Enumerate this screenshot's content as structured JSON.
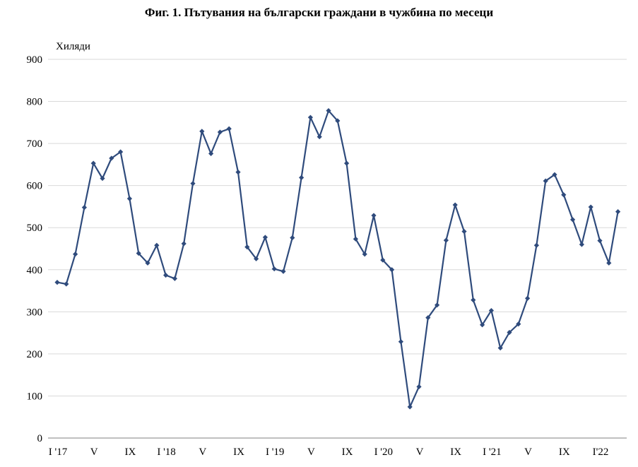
{
  "chart_data": {
    "type": "line",
    "title": "Фиг. 1. Пътувания на български граждани в чужбина по месеци",
    "ylabel": "Хиляди",
    "xlabel": "",
    "ylim": [
      0,
      900
    ],
    "yticks": [
      "0",
      "100",
      "200",
      "300",
      "400",
      "500",
      "600",
      "700",
      "800",
      "900"
    ],
    "grid": true,
    "legend": "none",
    "x_tick_labels": [
      {
        "index": 0,
        "label": "I '17"
      },
      {
        "index": 4,
        "label": "V"
      },
      {
        "index": 8,
        "label": "IX"
      },
      {
        "index": 12,
        "label": "I '18"
      },
      {
        "index": 16,
        "label": "V"
      },
      {
        "index": 20,
        "label": "IX"
      },
      {
        "index": 24,
        "label": "I '19"
      },
      {
        "index": 28,
        "label": "V"
      },
      {
        "index": 32,
        "label": "IX"
      },
      {
        "index": 36,
        "label": "I '20"
      },
      {
        "index": 40,
        "label": "V"
      },
      {
        "index": 44,
        "label": "IX"
      },
      {
        "index": 48,
        "label": "I '21"
      },
      {
        "index": 52,
        "label": "V"
      },
      {
        "index": 56,
        "label": "IX"
      },
      {
        "index": 60,
        "label": "I'22"
      }
    ],
    "series": [
      {
        "values": [
          370,
          366,
          437,
          548,
          653,
          617,
          665,
          680,
          569,
          439,
          416,
          458,
          387,
          379,
          462,
          605,
          729,
          676,
          727,
          735,
          632,
          454,
          426,
          477,
          402,
          396,
          476,
          619,
          762,
          716,
          778,
          754,
          653,
          473,
          437,
          529,
          423,
          400,
          229,
          74,
          122,
          286,
          316,
          470,
          554,
          491,
          328,
          269,
          303,
          214,
          251,
          271,
          332,
          458,
          611,
          626,
          578,
          519,
          460,
          549,
          469,
          416,
          538
        ]
      }
    ]
  },
  "colors": {
    "line": "#2f4b7c",
    "grid": "#d9d9d9",
    "axis": "#808080"
  }
}
